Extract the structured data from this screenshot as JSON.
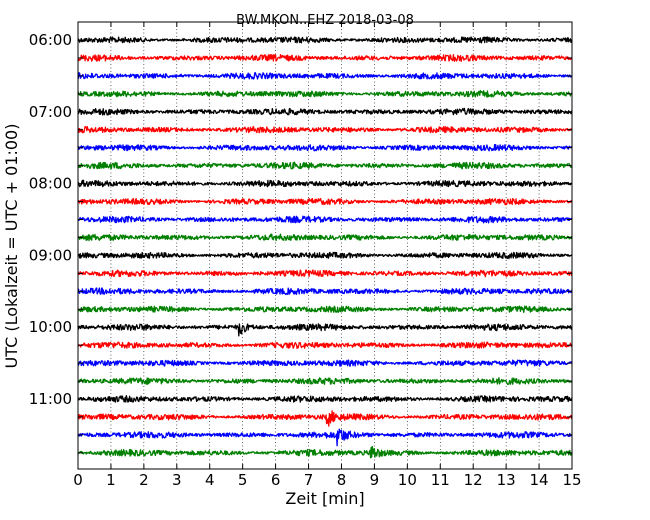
{
  "chart_data": {
    "type": "line",
    "title": "BW.MKON..EHZ 2018-03-08",
    "xlabel": "Zeit  [min]",
    "ylabel": "UTC (Lokalzeit = UTC + 01:00)",
    "xlim": [
      0,
      15
    ],
    "x_ticks": [
      "0",
      "1",
      "2",
      "3",
      "4",
      "5",
      "6",
      "7",
      "8",
      "9",
      "10",
      "11",
      "12",
      "13",
      "14",
      "15"
    ],
    "y_tick_labels": [
      "06:00",
      "07:00",
      "08:00",
      "09:00",
      "10:00",
      "11:00"
    ],
    "grid": "vertical dotted",
    "trace_minutes": 15,
    "colors_cycle": [
      "#000000",
      "#ff0000",
      "#0000ff",
      "#008000"
    ],
    "traces": [
      {
        "start": "06:00",
        "color": "#000000",
        "events": []
      },
      {
        "start": "06:15",
        "color": "#ff0000",
        "events": []
      },
      {
        "start": "06:30",
        "color": "#0000ff",
        "events": []
      },
      {
        "start": "06:45",
        "color": "#008000",
        "events": []
      },
      {
        "start": "07:00",
        "color": "#000000",
        "events": []
      },
      {
        "start": "07:15",
        "color": "#ff0000",
        "events": []
      },
      {
        "start": "07:30",
        "color": "#0000ff",
        "events": []
      },
      {
        "start": "07:45",
        "color": "#008000",
        "events": []
      },
      {
        "start": "08:00",
        "color": "#000000",
        "events": []
      },
      {
        "start": "08:15",
        "color": "#ff0000",
        "events": []
      },
      {
        "start": "08:30",
        "color": "#0000ff",
        "events": []
      },
      {
        "start": "08:45",
        "color": "#008000",
        "events": []
      },
      {
        "start": "09:00",
        "color": "#000000",
        "events": []
      },
      {
        "start": "09:15",
        "color": "#ff0000",
        "events": []
      },
      {
        "start": "09:30",
        "color": "#0000ff",
        "events": []
      },
      {
        "start": "09:45",
        "color": "#008000",
        "events": []
      },
      {
        "start": "10:00",
        "color": "#000000",
        "events": [
          {
            "t": 4.9
          }
        ]
      },
      {
        "start": "10:15",
        "color": "#ff0000",
        "events": []
      },
      {
        "start": "10:30",
        "color": "#0000ff",
        "events": []
      },
      {
        "start": "10:45",
        "color": "#008000",
        "events": []
      },
      {
        "start": "11:00",
        "color": "#000000",
        "events": []
      },
      {
        "start": "11:15",
        "color": "#ff0000",
        "events": [
          {
            "t": 7.6
          }
        ]
      },
      {
        "start": "11:30",
        "color": "#0000ff",
        "events": [
          {
            "t": 7.9
          }
        ]
      },
      {
        "start": "11:45",
        "color": "#008000",
        "events": [
          {
            "t": 8.9
          }
        ]
      }
    ]
  }
}
